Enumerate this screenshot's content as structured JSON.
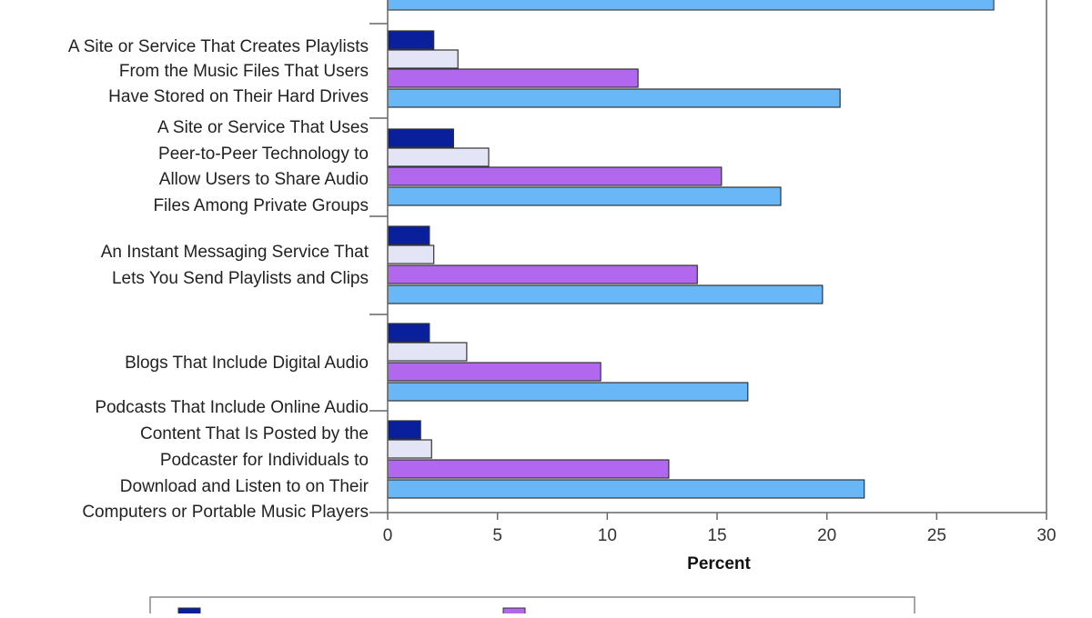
{
  "chart_data": {
    "type": "bar",
    "orientation": "horizontal",
    "xlabel": "Percent",
    "xlim": [
      0,
      30
    ],
    "x_ticks": [
      "0",
      "5",
      "10",
      "15",
      "20",
      "25",
      "30"
    ],
    "grid": false,
    "legend": "bottom",
    "categories": [
      [
        "A Site or Service That Creates Playlists",
        "From the Music Files That Users",
        "Have Stored on Their Hard Drives"
      ],
      [
        "A Site or Service That Uses",
        "Peer-to-Peer Technology to",
        "Allow Users to Share Audio",
        "Files Among Private Groups"
      ],
      [
        "An Instant Messaging Service That",
        "Lets You Send Playlists and Clips"
      ],
      [
        "Blogs That Include Digital Audio"
      ],
      [
        "Podcasts That Include Online Audio",
        "Content That Is Posted by the",
        "Podcaster for Individuals to",
        "Download and Listen to on Their",
        "Computers or Portable Music Players"
      ]
    ],
    "series": [
      {
        "color": "#0a1f9c",
        "values": [
          2.1,
          3.0,
          1.9,
          1.9,
          1.5
        ]
      },
      {
        "color": "#e4e4f7",
        "values": [
          3.2,
          4.6,
          2.1,
          3.6,
          2.0
        ]
      },
      {
        "color": "#b167ee",
        "values": [
          11.4,
          15.2,
          14.1,
          9.7,
          12.8
        ]
      },
      {
        "color": "#69b7f7",
        "values": [
          20.6,
          17.9,
          19.8,
          16.4,
          21.7
        ]
      }
    ],
    "cut_off_top_value": 27.6,
    "cut_off_top_color": "#69b7f7",
    "legend_swatches": [
      "#0a1f9c",
      "#b167ee"
    ]
  }
}
